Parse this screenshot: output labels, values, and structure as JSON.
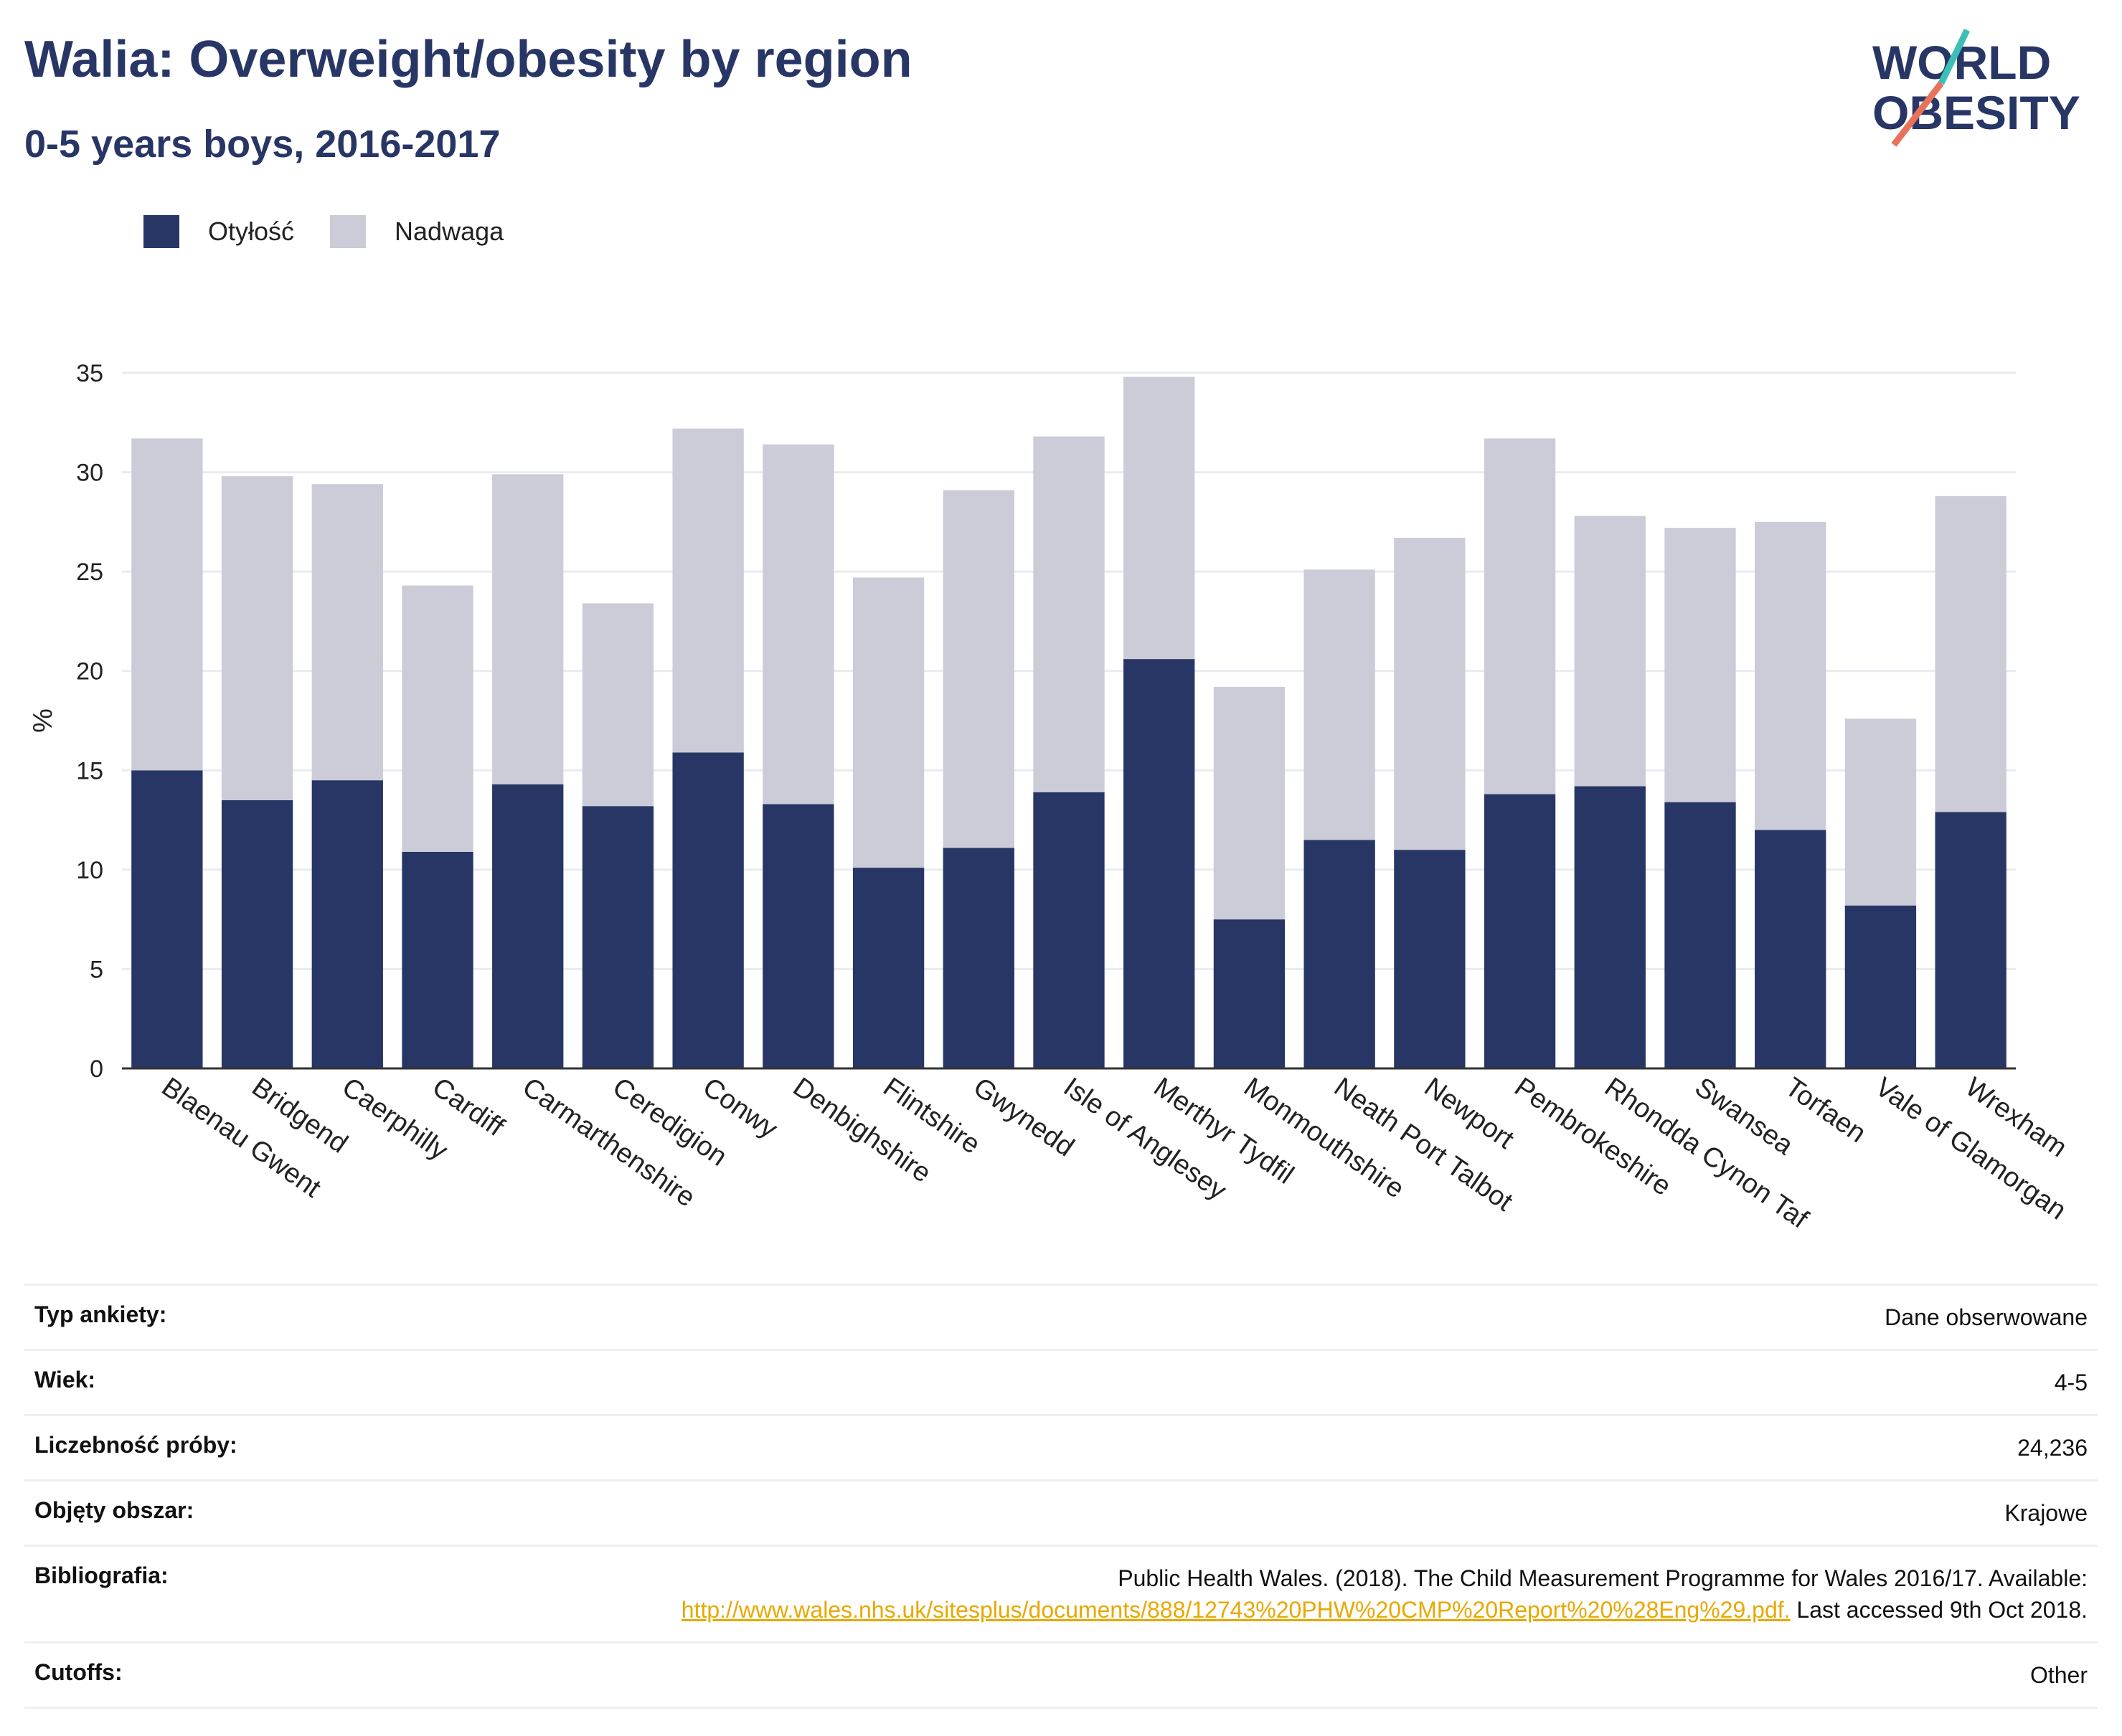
{
  "header": {
    "title": "Walia: Overweight/obesity by region",
    "subtitle": "0-5 years boys, 2016-2017"
  },
  "logo": {
    "line1": "WORLD",
    "line2": "OBESITY"
  },
  "colors": {
    "obesity": "#283665",
    "overweight": "#cbccd8",
    "accent_teal": "#3dbfb8",
    "accent_coral": "#e8735a",
    "link": "#e8a800"
  },
  "legend": [
    {
      "label": "Otyłość",
      "color": "#283665"
    },
    {
      "label": "Nadwaga",
      "color": "#cbccd8"
    }
  ],
  "chart_data": {
    "type": "bar",
    "stacked": true,
    "ylabel": "%",
    "ylim": [
      0,
      35
    ],
    "yticks": [
      0,
      5,
      10,
      15,
      20,
      25,
      30,
      35
    ],
    "grid": true,
    "legend_position": "top-left",
    "categories": [
      "Blaenau Gwent",
      "Bridgend",
      "Caerphilly",
      "Cardiff",
      "Carmarthenshire",
      "Ceredigion",
      "Conwy",
      "Denbighshire",
      "Flintshire",
      "Gwynedd",
      "Isle of Anglesey",
      "Merthyr Tydfil",
      "Monmouthshire",
      "Neath Port Talbot",
      "Newport",
      "Pembrokeshire",
      "Rhondda Cynon Taf",
      "Swansea",
      "Torfaen",
      "Vale of Glamorgan",
      "Wrexham"
    ],
    "series": [
      {
        "name": "Otyłość",
        "values": [
          15.0,
          13.5,
          14.5,
          10.9,
          14.3,
          13.2,
          15.9,
          13.3,
          10.1,
          11.1,
          13.9,
          20.6,
          7.5,
          11.5,
          11.0,
          13.8,
          14.2,
          13.4,
          12.0,
          8.2,
          12.9
        ]
      },
      {
        "name": "Nadwaga",
        "values": [
          16.7,
          16.3,
          14.9,
          13.4,
          15.6,
          10.2,
          16.3,
          18.1,
          14.6,
          18.0,
          17.9,
          14.2,
          11.7,
          13.6,
          15.7,
          17.9,
          13.6,
          13.8,
          15.5,
          9.4,
          15.9
        ]
      }
    ]
  },
  "meta": [
    {
      "key": "Typ ankiety:",
      "value": "Dane obserwowane"
    },
    {
      "key": "Wiek:",
      "value": "4-5"
    },
    {
      "key": "Liczebność próby:",
      "value": "24,236"
    },
    {
      "key": "Objęty obszar:",
      "value": "Krajowe"
    }
  ],
  "bibliography": {
    "key": "Bibliografia:",
    "text_before": "Public Health Wales. (2018). The Child Measurement Programme for Wales 2016/17. Available:",
    "link": "http://www.wales.nhs.uk/sitesplus/documents/888/12743%20PHW%20CMP%20Report%20%28Eng%29.pdf.",
    "text_after": "Last accessed 9th Oct 2018."
  },
  "cutoffs": {
    "key": "Cutoffs:",
    "value": "Other"
  }
}
